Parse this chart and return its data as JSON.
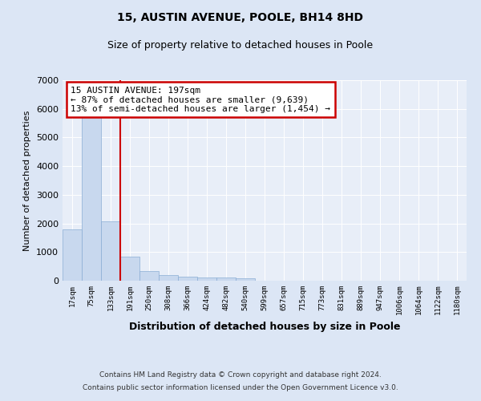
{
  "title": "15, AUSTIN AVENUE, POOLE, BH14 8HD",
  "subtitle": "Size of property relative to detached houses in Poole",
  "xlabel": "Distribution of detached houses by size in Poole",
  "ylabel": "Number of detached properties",
  "footnote1": "Contains HM Land Registry data © Crown copyright and database right 2024.",
  "footnote2": "Contains public sector information licensed under the Open Government Licence v3.0.",
  "categories": [
    "17sqm",
    "75sqm",
    "133sqm",
    "191sqm",
    "250sqm",
    "308sqm",
    "366sqm",
    "424sqm",
    "482sqm",
    "540sqm",
    "599sqm",
    "657sqm",
    "715sqm",
    "773sqm",
    "831sqm",
    "889sqm",
    "947sqm",
    "1006sqm",
    "1064sqm",
    "1122sqm",
    "1180sqm"
  ],
  "values": [
    1780,
    5780,
    2060,
    830,
    340,
    200,
    130,
    110,
    100,
    80,
    0,
    0,
    0,
    0,
    0,
    0,
    0,
    0,
    0,
    0,
    0
  ],
  "bar_color": "#c8d8ee",
  "bar_edge_color": "#8aadd4",
  "highlight_color": "#cc0000",
  "annotation_title": "15 AUSTIN AVENUE: 197sqm",
  "annotation_line1": "← 87% of detached houses are smaller (9,639)",
  "annotation_line2": "13% of semi-detached houses are larger (1,454) →",
  "annotation_box_color": "#cc0000",
  "ylim": [
    0,
    7000
  ],
  "yticks": [
    0,
    1000,
    2000,
    3000,
    4000,
    5000,
    6000,
    7000
  ],
  "bg_color": "#dce6f5",
  "plot_bg_color": "#e8eef8",
  "grid_color": "#ffffff",
  "title_fontsize": 10,
  "subtitle_fontsize": 9
}
